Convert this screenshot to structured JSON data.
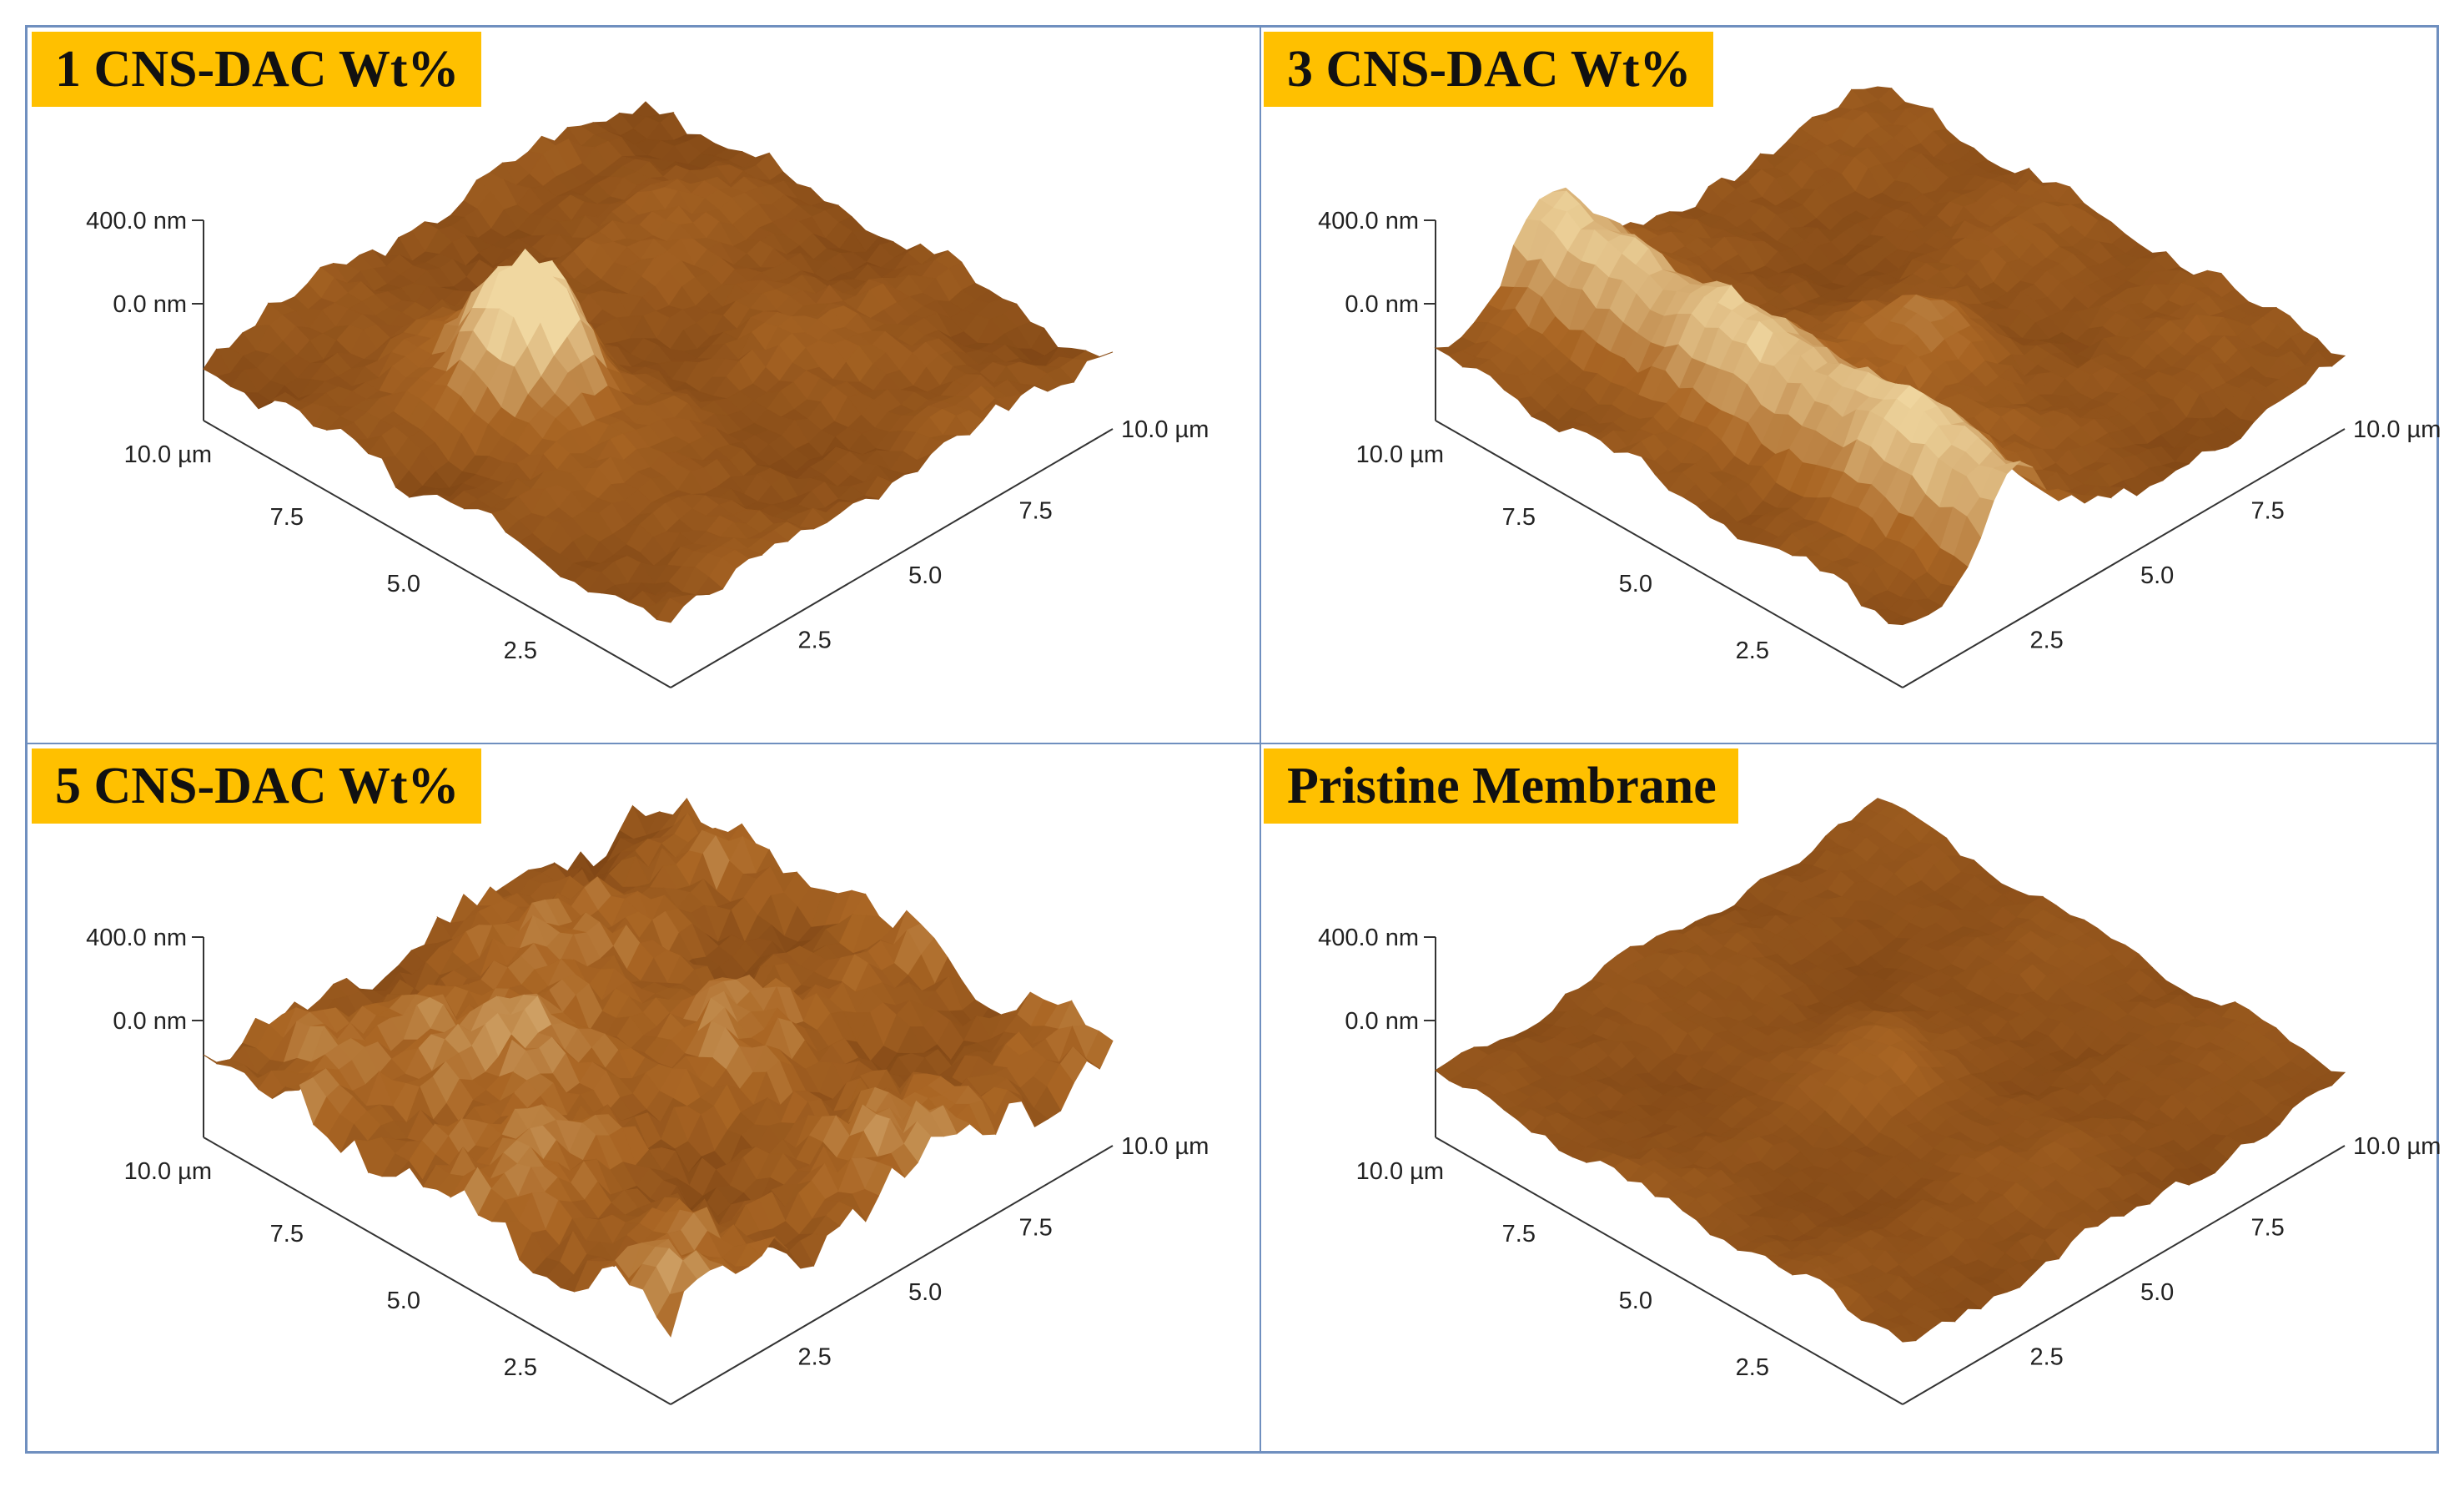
{
  "panels": [
    {
      "title": "1 CNS-DAC Wt%",
      "z_top": "400.0 nm",
      "z_zero": "0.0 nm",
      "x_max": "10.0 µm",
      "x_ticks": [
        "7.5",
        "5.0",
        "2.5"
      ],
      "y_max": "10.0 µm",
      "y_ticks": [
        "7.5",
        "5.0",
        "2.5"
      ]
    },
    {
      "title": "3 CNS-DAC Wt%",
      "z_top": "400.0 nm",
      "z_zero": "0.0 nm",
      "x_max": "10.0 µm",
      "x_ticks": [
        "7.5",
        "5.0",
        "2.5"
      ],
      "y_max": "10.0 µm",
      "y_ticks": [
        "7.5",
        "5.0",
        "2.5"
      ]
    },
    {
      "title": "5 CNS-DAC Wt%",
      "z_top": "400.0 nm",
      "z_zero": "0.0 nm",
      "x_max": "10.0 µm",
      "x_ticks": [
        "7.5",
        "5.0",
        "2.5"
      ],
      "y_max": "10.0 µm",
      "y_ticks": [
        "7.5",
        "5.0",
        "2.5"
      ]
    },
    {
      "title": "Pristine Membrane",
      "z_top": "400.0 nm",
      "z_zero": "0.0 nm",
      "x_max": "10.0 µm",
      "x_ticks": [
        "7.5",
        "5.0",
        "2.5"
      ],
      "y_max": "10.0 µm",
      "y_ticks": [
        "7.5",
        "5.0",
        "2.5"
      ]
    }
  ],
  "colors": {
    "title_bg": "#ffc000",
    "border": "#6f8fbf",
    "surface_dark": "#5a2a08",
    "surface_mid": "#9a5a1c",
    "surface_light": "#e8c890"
  }
}
